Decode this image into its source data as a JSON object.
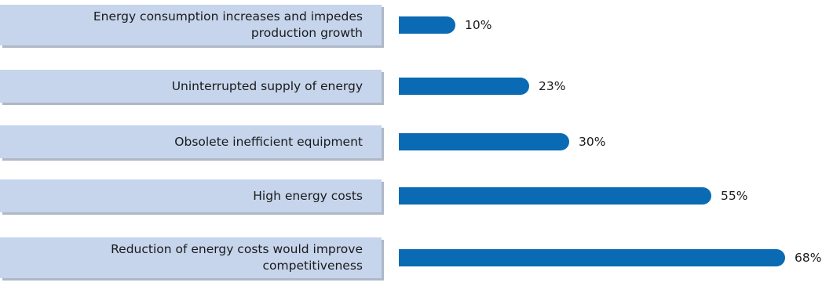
{
  "chart_data": {
    "type": "bar",
    "orientation": "horizontal",
    "categories": [
      "Energy consumption increases and impedes production growth",
      "Uninterrupted supply of energy",
      "Obsolete inefficient equipment",
      "High energy costs",
      "Reduction of energy costs would improve competitiveness"
    ],
    "category_lines": [
      [
        "Energy consumption increases and impedes",
        "production growth"
      ],
      [
        "Uninterrupted supply of energy"
      ],
      [
        "Obsolete inefficient equipment"
      ],
      [
        "High energy costs"
      ],
      [
        "Reduction of energy costs would improve",
        "competitiveness"
      ]
    ],
    "values": [
      10,
      23,
      30,
      55,
      68
    ],
    "value_labels": [
      "10%",
      "23%",
      "30%",
      "55%",
      "68%"
    ],
    "unit": "%",
    "xlim": [
      0,
      68
    ],
    "grid": false,
    "legend": "none",
    "bar_color": "#0a6ab3",
    "label_bg_color": "#c6d5ec"
  }
}
